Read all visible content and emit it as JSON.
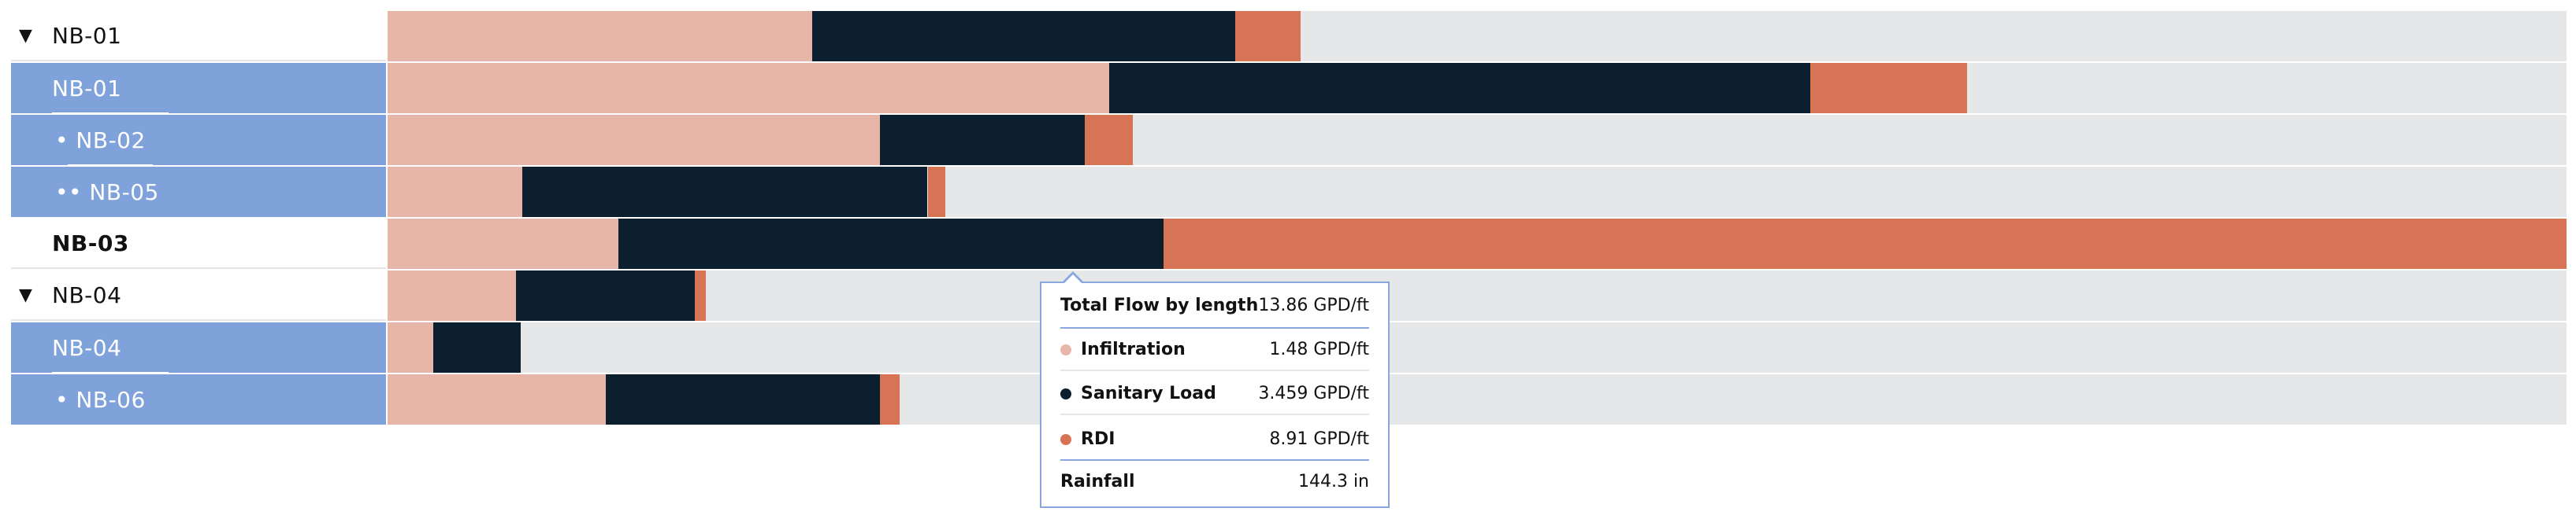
{
  "colors": {
    "infiltration": "#e8b6a9",
    "sanitary": "#0b1f2f",
    "rdi": "#d87456",
    "track": "#e6e7e9",
    "selected": "#7fa2db",
    "tooltip_border": "#8aa7dd"
  },
  "tree": [
    {
      "label": "NB-01",
      "caret": "▼",
      "selected": false,
      "bold": false
    },
    {
      "label": "NB-01",
      "caret": "",
      "selected": true,
      "bold": false
    },
    {
      "label": "• NB-02",
      "caret": "",
      "selected": true,
      "bold": false
    },
    {
      "label": "•• NB-05",
      "caret": "",
      "selected": true,
      "bold": false
    },
    {
      "label": "NB-03",
      "caret": "",
      "selected": false,
      "bold": true
    },
    {
      "label": "NB-04",
      "caret": "▼",
      "selected": false,
      "bold": false
    },
    {
      "label": "NB-04",
      "caret": "",
      "selected": true,
      "bold": false
    },
    {
      "label": "• NB-06",
      "caret": "",
      "selected": true,
      "bold": false
    }
  ],
  "bars": [
    {
      "infiltration": 0.195,
      "sanitary": 0.194,
      "rdi": 0.03
    },
    {
      "infiltration": 0.331,
      "sanitary": 0.322,
      "rdi": 0.072
    },
    {
      "infiltration": 0.226,
      "sanitary": 0.094,
      "rdi": 0.022
    },
    {
      "infiltration": 0.062,
      "sanitary": 0.186,
      "rdi": 0.008
    },
    {
      "infiltration": 0.106,
      "sanitary": 0.25,
      "rdi": 0.644
    },
    {
      "infiltration": 0.059,
      "sanitary": 0.082,
      "rdi": 0.005
    },
    {
      "infiltration": 0.021,
      "sanitary": 0.04,
      "rdi": 0.0
    },
    {
      "infiltration": 0.1,
      "sanitary": 0.126,
      "rdi": 0.009
    }
  ],
  "tooltip": {
    "title": "Total Flow by length",
    "total": "13.86 GPD/ft",
    "rows": [
      {
        "label": "Infiltration",
        "value": "1.48 GPD/ft",
        "color_key": "infiltration"
      },
      {
        "label": "Sanitary Load",
        "value": "3.459 GPD/ft",
        "color_key": "sanitary"
      },
      {
        "label": "RDI",
        "value": "8.91 GPD/ft",
        "color_key": "rdi"
      }
    ],
    "rainfall_label": "Rainfall",
    "rainfall_value": "144.3 in"
  }
}
